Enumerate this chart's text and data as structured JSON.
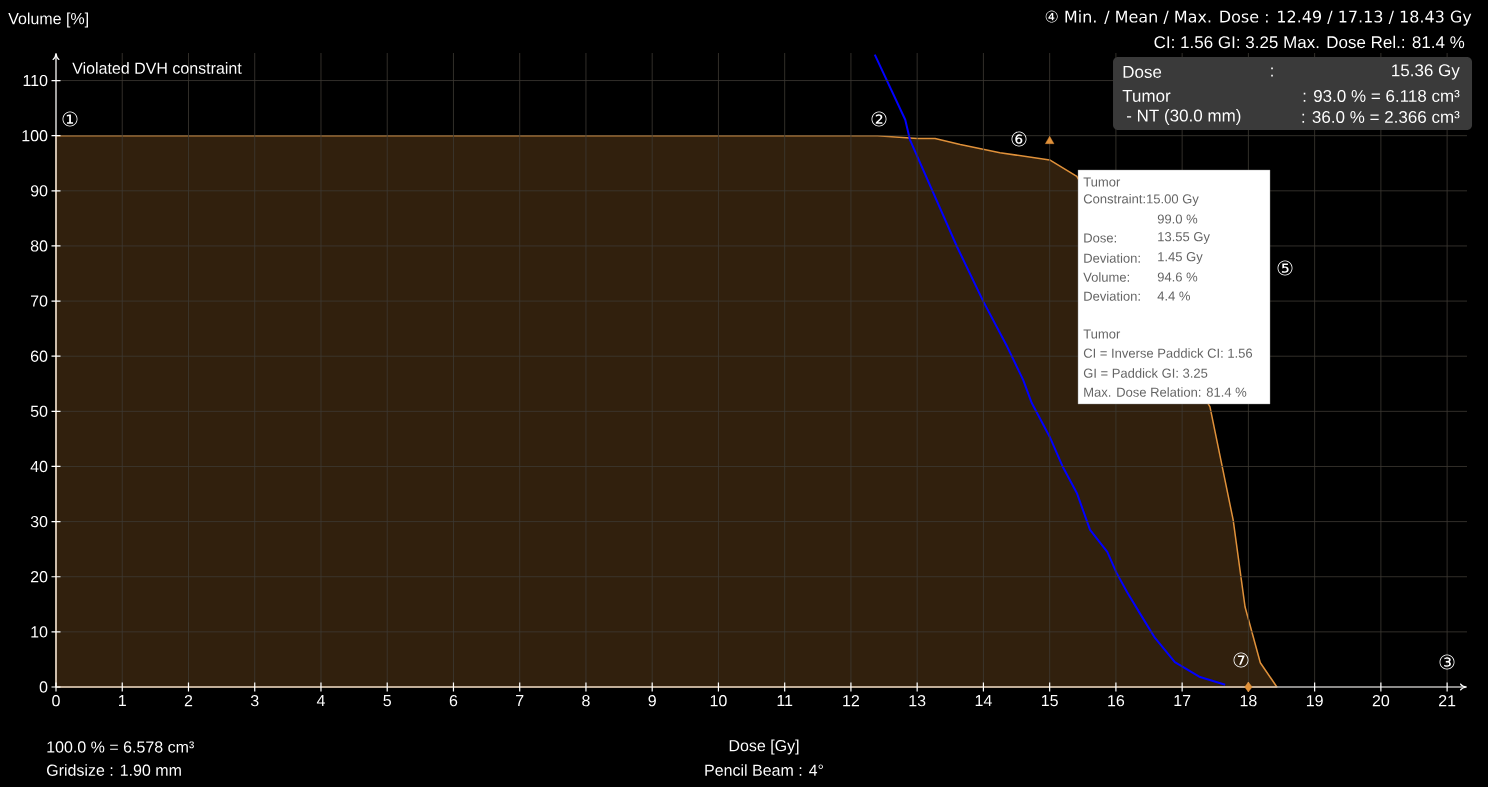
{
  "chart_data": {
    "type": "area",
    "title": "Violated DVH constraint",
    "xlabel": "Dose [Gy]",
    "ylabel": "Volume [%]",
    "xlim": [
      0,
      21.3
    ],
    "ylim": [
      0,
      115
    ],
    "xticks": [
      0,
      1,
      2,
      3,
      4,
      5,
      6,
      7,
      8,
      9,
      10,
      11,
      12,
      13,
      14,
      15,
      16,
      17,
      18,
      19,
      20,
      21
    ],
    "yticks": [
      0,
      10,
      20,
      30,
      40,
      50,
      60,
      70,
      80,
      90,
      100,
      110
    ],
    "grid": true,
    "series": [
      {
        "color": "#e0913a",
        "x": [
          0,
          12.4,
          13.0,
          13.27,
          13.65,
          14.25,
          15.0,
          15.41,
          17.42,
          17.77,
          17.95,
          18.18,
          18.43
        ],
        "values": [
          100,
          100,
          99.5,
          99.5,
          98.4,
          96.9,
          95.6,
          92.6,
          50.8,
          30.3,
          14.5,
          4.4,
          0
        ]
      },
      {
        "type": "line",
        "color": "#0000ff",
        "x": [
          12.36,
          12.82,
          12.89,
          13.6,
          14.0,
          14.36,
          14.6,
          14.73,
          15.0,
          15.2,
          15.41,
          15.61,
          15.87,
          16.01,
          16.17,
          16.36,
          16.59,
          16.89,
          17.27,
          17.65
        ],
        "values": [
          114.7,
          102.9,
          99.3,
          79.9,
          69.9,
          61.7,
          55.7,
          51.5,
          45.4,
          39.9,
          35.2,
          28.5,
          24.5,
          20.7,
          17.2,
          13.4,
          8.9,
          4.5,
          1.8,
          0.4
        ]
      },
      {
        "type": "scatter",
        "marker": "triangle",
        "color": "#e0913a",
        "x": [
          15.0
        ],
        "values": [
          99.0
        ]
      },
      {
        "type": "scatter",
        "marker": "diamond",
        "color": "#e0913a",
        "x": [
          18.0
        ],
        "values": [
          0
        ]
      }
    ],
    "annotations": [
      "④ Min. / Mean / Max. Dose : 12.49 / 17.13 / 18.43 Gy",
      "CI: 1.56  GI: 3.25  Max. Dose Rel.: 81.4 %",
      "Dose",
      ":",
      "15.36 Gy",
      "Tumor",
      ": 93.0 % = 6.118 cm³",
      "- NT (30.0 mm)",
      ": 36.0 % = 2.366 cm³",
      "Tumor",
      "Constraint:15.00 Gy",
      "99.0 %",
      "Dose:",
      "13.55 Gy",
      "Deviation:",
      "1.45 Gy",
      "Volume:",
      "94.6 %",
      "Deviation:",
      "4.4 %",
      "Tumor",
      "CI = Inverse Paddick CI: 1.56",
      "GI = Paddick GI: 3.25",
      "Max. Dose Relation: 81.4 %",
      "100.0 % = 6.578 cm³",
      "Gridsize : 1.90 mm",
      "Pencil Beam : 4°",
      "①",
      "②",
      "③",
      "⑤",
      "⑥",
      "⑦"
    ]
  }
}
